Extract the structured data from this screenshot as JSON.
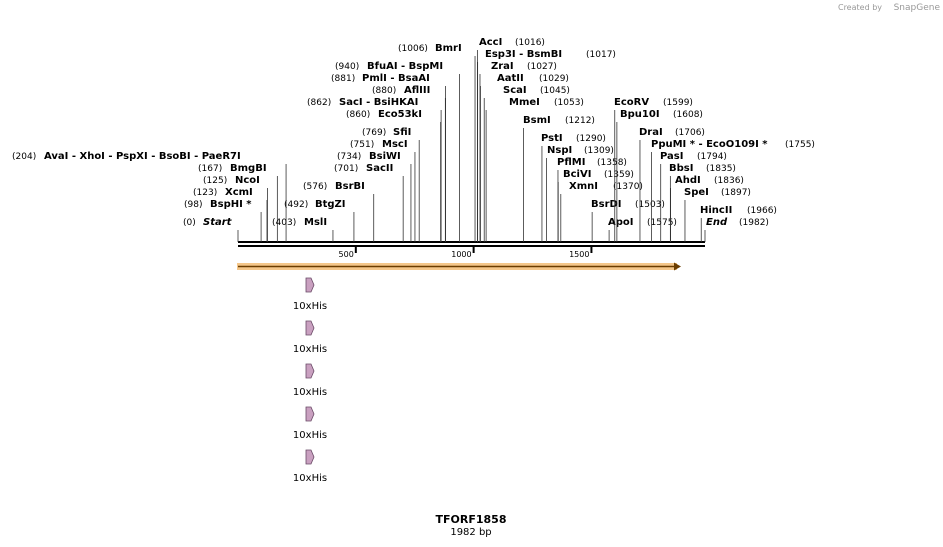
{
  "branding": {
    "prefix": "Created by",
    "name": "SnapGene"
  },
  "sites": [
    {
      "name": "Start",
      "position": {
        "value": 0,
        "label": "(0)"
      }
    },
    {
      "name": "BspHI *",
      "position": {
        "value": 98,
        "label": "(98)"
      }
    },
    {
      "name": "XcmI",
      "position": {
        "value": 123,
        "label": "(123)"
      }
    },
    {
      "name": "NcoI",
      "position": {
        "value": 125,
        "label": "(125)"
      }
    },
    {
      "name": "BmgBI",
      "position": {
        "value": 167,
        "label": "(167)"
      }
    },
    {
      "name": "AvaI  - XhoI  - PspXI  - BsoBI  - PaeR7I",
      "position": {
        "value": 204,
        "label": "(204)"
      }
    },
    {
      "name": "MslI",
      "position": {
        "value": 403,
        "label": "(403)"
      }
    },
    {
      "name": "BtgZI",
      "position": {
        "value": 492,
        "label": "(492)"
      }
    },
    {
      "name": "BsrBI",
      "position": {
        "value": 576,
        "label": "(576)"
      }
    },
    {
      "name": "SacII",
      "position": {
        "value": 701,
        "label": "(701)"
      }
    },
    {
      "name": "BsiWI",
      "position": {
        "value": 734,
        "label": "(734)"
      }
    },
    {
      "name": "MscI",
      "position": {
        "value": 751,
        "label": "(751)"
      }
    },
    {
      "name": "SfiI",
      "position": {
        "value": 769,
        "label": "(769)"
      }
    },
    {
      "name": "Eco53kI",
      "position": {
        "value": 860,
        "label": "(860)"
      }
    },
    {
      "name": "SacI  - BsiHKAI",
      "position": {
        "value": 862,
        "label": "(862)"
      }
    },
    {
      "name": "AflIII",
      "position": {
        "value": 880,
        "label": "(880)"
      }
    },
    {
      "name": "PmlI  - BsaAI",
      "position": {
        "value": 881,
        "label": "(881)"
      }
    },
    {
      "name": "BfuAI  - BspMI",
      "position": {
        "value": 940,
        "label": "(940)"
      }
    },
    {
      "name": "BmrI",
      "position": {
        "value": 1006,
        "label": "(1006)"
      }
    },
    {
      "name": "AccI",
      "position": {
        "value": 1016,
        "label": "(1016)"
      }
    },
    {
      "name": "Esp3I  - BsmBI",
      "position": {
        "value": 1017,
        "label": "(1017)"
      }
    },
    {
      "name": "ZraI",
      "position": {
        "value": 1027,
        "label": "(1027)"
      }
    },
    {
      "name": "AatII",
      "position": {
        "value": 1029,
        "label": "(1029)"
      }
    },
    {
      "name": "ScaI",
      "position": {
        "value": 1045,
        "label": "(1045)"
      }
    },
    {
      "name": "MmeI",
      "position": {
        "value": 1053,
        "label": "(1053)"
      }
    },
    {
      "name": "BsmI",
      "position": {
        "value": 1212,
        "label": "(1212)"
      }
    },
    {
      "name": "PstI",
      "position": {
        "value": 1290,
        "label": "(1290)"
      }
    },
    {
      "name": "NspI",
      "position": {
        "value": 1309,
        "label": "(1309)"
      }
    },
    {
      "name": "PflMI",
      "position": {
        "value": 1358,
        "label": "(1358)"
      }
    },
    {
      "name": "BciVI",
      "position": {
        "value": 1359,
        "label": "(1359)"
      }
    },
    {
      "name": "XmnI",
      "position": {
        "value": 1370,
        "label": "(1370)"
      }
    },
    {
      "name": "BsrDI",
      "position": {
        "value": 1503,
        "label": "(1503)"
      }
    },
    {
      "name": "ApoI",
      "position": {
        "value": 1575,
        "label": "(1575)"
      }
    },
    {
      "name": "EcoRV",
      "position": {
        "value": 1599,
        "label": "(1599)"
      }
    },
    {
      "name": "Bpu10I",
      "position": {
        "value": 1608,
        "label": "(1608)"
      }
    },
    {
      "name": "DraI",
      "position": {
        "value": 1706,
        "label": "(1706)"
      }
    },
    {
      "name": "PpuMI *  - EcoO109I *",
      "position": {
        "value": 1755,
        "label": "(1755)"
      }
    },
    {
      "name": "PasI",
      "position": {
        "value": 1794,
        "label": "(1794)"
      }
    },
    {
      "name": "BbsI",
      "position": {
        "value": 1835,
        "label": "(1835)"
      }
    },
    {
      "name": "AhdI",
      "position": {
        "value": 1836,
        "label": "(1836)"
      }
    },
    {
      "name": "SpeI",
      "position": {
        "value": 1897,
        "label": "(1897)"
      }
    },
    {
      "name": "HincII",
      "position": {
        "value": 1966,
        "label": "(1966)"
      }
    },
    {
      "name": "End",
      "position": {
        "value": 1982,
        "label": "(1982)"
      }
    }
  ],
  "ruler": {
    "range": [
      0,
      1982
    ],
    "ticks": [
      500,
      1000,
      1500
    ]
  },
  "features": [
    "10xHis",
    "10xHis",
    "10xHis",
    "10xHis",
    "10xHis"
  ],
  "footer": {
    "title": "TFORF1858",
    "length": "1982 bp"
  }
}
